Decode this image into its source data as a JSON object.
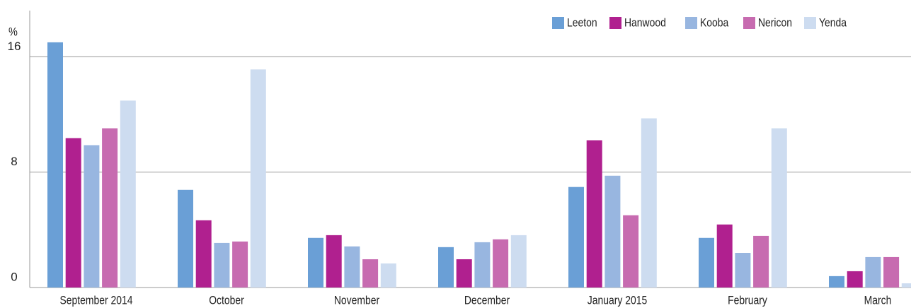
{
  "chart_data": {
    "type": "bar",
    "y_label": "%",
    "categories": [
      "September 2014",
      "October",
      "November",
      "December",
      "January 2015",
      "February",
      "March"
    ],
    "series": [
      {
        "name": "Leeton",
        "color": "#6a9fd6",
        "values": [
          17.0,
          6.77,
          3.44,
          2.8,
          6.97,
          3.44,
          0.79
        ]
      },
      {
        "name": "Hanwood",
        "color": "#b0208f",
        "values": [
          10.36,
          4.66,
          3.63,
          1.96,
          10.21,
          4.37,
          1.13
        ]
      },
      {
        "name": "Kooba",
        "color": "#98b6e0",
        "values": [
          9.87,
          3.09,
          2.85,
          3.14,
          7.75,
          2.4,
          2.11
        ]
      },
      {
        "name": "Nericon",
        "color": "#c76bb0",
        "values": [
          11.04,
          3.19,
          1.96,
          3.34,
          5.01,
          3.58,
          2.11
        ]
      },
      {
        "name": "Yenda",
        "color": "#cddcf0",
        "values": [
          12.96,
          15.12,
          1.67,
          3.63,
          11.73,
          11.04,
          0.29
        ]
      }
    ],
    "ylim": [
      0,
      19.2
    ],
    "yticks": [
      0,
      8,
      16
    ],
    "grid": true,
    "legend": "top-right"
  }
}
